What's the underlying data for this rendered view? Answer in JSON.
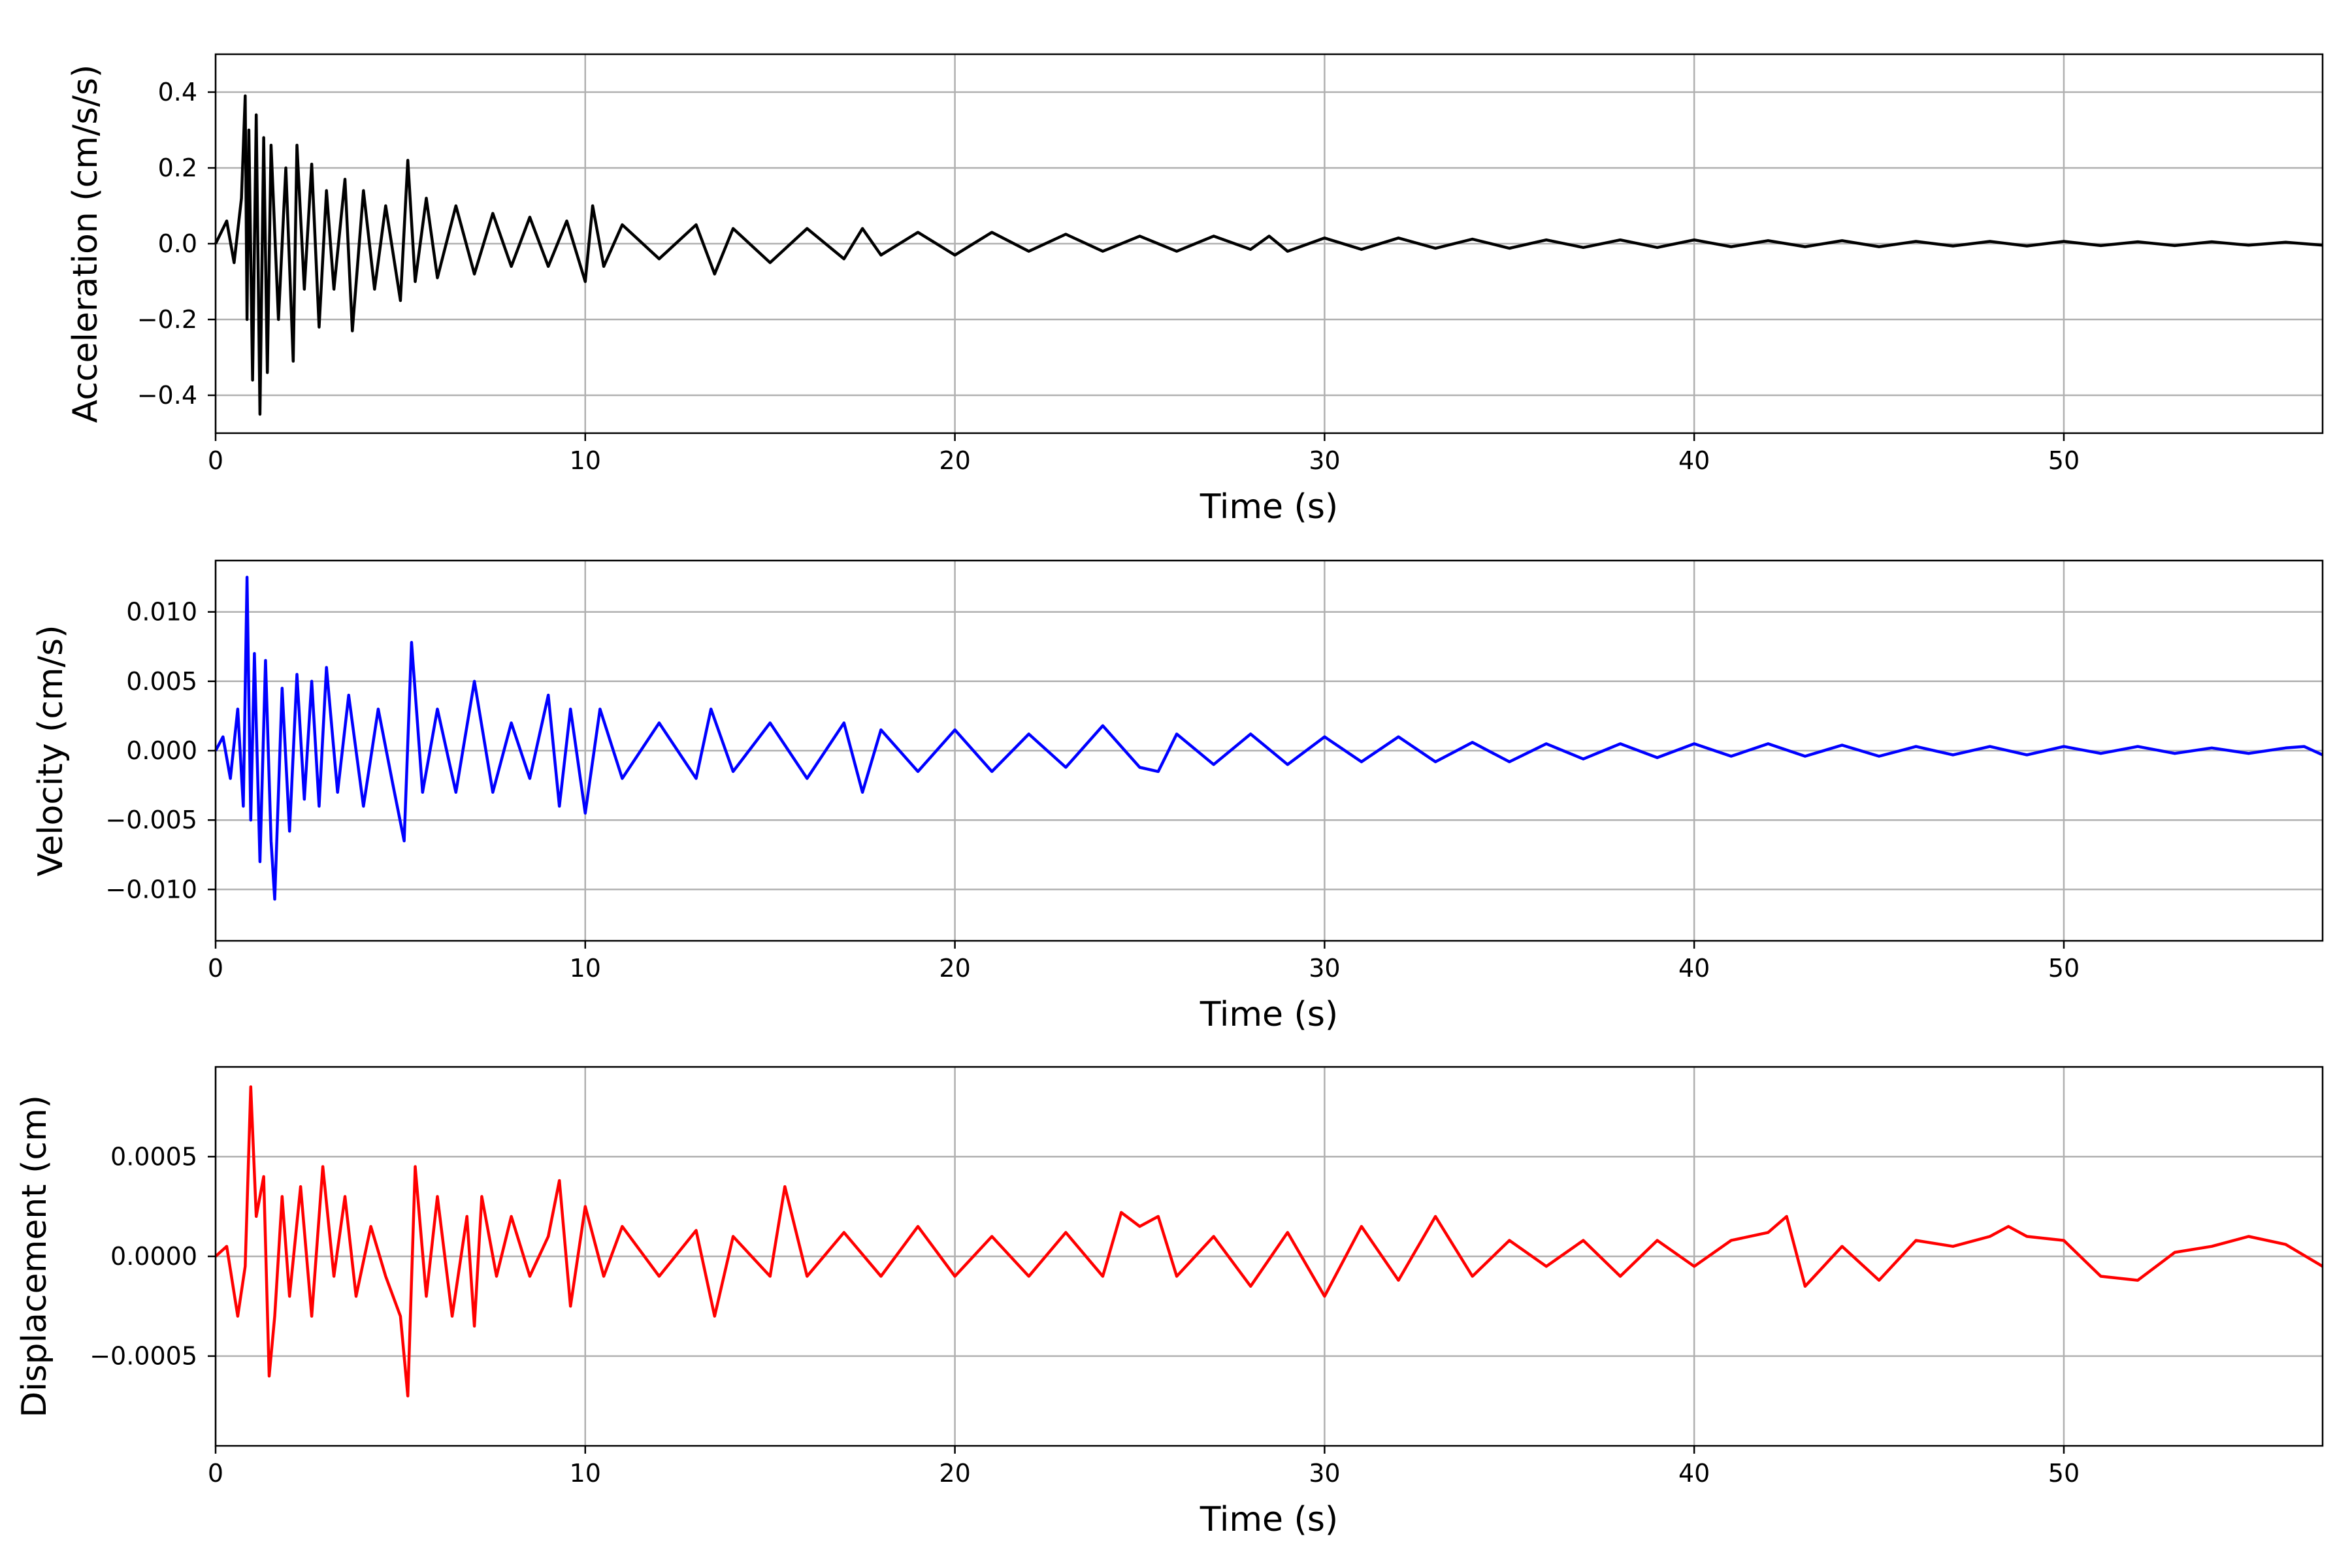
{
  "chart_data": [
    {
      "type": "line",
      "xlabel": "Time (s)",
      "ylabel": "Acceleration (cm/s/s)",
      "xlim": [
        0,
        57
      ],
      "ylim": [
        -0.5,
        0.5
      ],
      "xticks": [
        0,
        10,
        20,
        30,
        40,
        50
      ],
      "yticks": [
        -0.4,
        -0.2,
        0.0,
        0.2,
        0.4
      ],
      "ytick_labels": [
        "−0.4",
        "−0.2",
        "0.0",
        "0.2",
        "0.4"
      ],
      "grid": true,
      "series": [
        {
          "color": "#000000",
          "x": [
            0,
            0.3,
            0.5,
            0.7,
            0.8,
            0.85,
            0.9,
            1.0,
            1.1,
            1.2,
            1.3,
            1.4,
            1.5,
            1.7,
            1.9,
            2.1,
            2.2,
            2.4,
            2.6,
            2.8,
            3.0,
            3.2,
            3.5,
            3.7,
            4.0,
            4.3,
            4.6,
            5.0,
            5.2,
            5.4,
            5.7,
            6.0,
            6.5,
            7.0,
            7.5,
            8.0,
            8.5,
            9.0,
            9.5,
            10.0,
            10.2,
            10.5,
            11,
            12,
            13,
            13.5,
            14,
            15,
            16,
            17,
            17.5,
            18,
            19,
            20,
            21,
            22,
            23,
            24,
            25,
            26,
            27,
            28,
            28.5,
            29,
            30,
            31,
            32,
            33,
            34,
            35,
            36,
            37,
            38,
            39,
            40,
            41,
            42,
            43,
            44,
            45,
            46,
            47,
            48,
            49,
            50,
            51,
            52,
            53,
            54,
            55,
            56,
            57
          ],
          "y": [
            0.0,
            0.06,
            -0.05,
            0.12,
            0.39,
            -0.2,
            0.3,
            -0.36,
            0.34,
            -0.45,
            0.28,
            -0.34,
            0.26,
            -0.2,
            0.2,
            -0.31,
            0.26,
            -0.12,
            0.21,
            -0.22,
            0.14,
            -0.12,
            0.17,
            -0.23,
            0.14,
            -0.12,
            0.1,
            -0.15,
            0.22,
            -0.1,
            0.12,
            -0.09,
            0.1,
            -0.08,
            0.08,
            -0.06,
            0.07,
            -0.06,
            0.06,
            -0.1,
            0.1,
            -0.06,
            0.05,
            -0.04,
            0.05,
            -0.08,
            0.04,
            -0.05,
            0.04,
            -0.04,
            0.04,
            -0.03,
            0.03,
            -0.03,
            0.03,
            -0.02,
            0.025,
            -0.02,
            0.02,
            -0.02,
            0.02,
            -0.015,
            0.02,
            -0.02,
            0.015,
            -0.015,
            0.015,
            -0.012,
            0.012,
            -0.012,
            0.01,
            -0.01,
            0.01,
            -0.01,
            0.01,
            -0.008,
            0.008,
            -0.008,
            0.008,
            -0.008,
            0.006,
            -0.006,
            0.006,
            -0.006,
            0.006,
            -0.005,
            0.005,
            -0.005,
            0.005,
            -0.004,
            0.004,
            -0.004
          ]
        }
      ]
    },
    {
      "type": "line",
      "xlabel": "Time (s)",
      "ylabel": "Velocity (cm/s)",
      "xlim": [
        0,
        57
      ],
      "ylim": [
        -0.0137,
        0.0137
      ],
      "xticks": [
        0,
        10,
        20,
        30,
        40,
        50
      ],
      "yticks": [
        -0.01,
        -0.005,
        0.0,
        0.005,
        0.01
      ],
      "ytick_labels": [
        "−0.010",
        "−0.005",
        "0.000",
        "0.005",
        "0.010"
      ],
      "grid": true,
      "series": [
        {
          "color": "#0000ff",
          "x": [
            0,
            0.2,
            0.4,
            0.6,
            0.75,
            0.85,
            0.95,
            1.05,
            1.2,
            1.35,
            1.5,
            1.6,
            1.8,
            2.0,
            2.2,
            2.4,
            2.6,
            2.8,
            3.0,
            3.3,
            3.6,
            4.0,
            4.4,
            4.8,
            5.1,
            5.3,
            5.6,
            6.0,
            6.5,
            7.0,
            7.5,
            8.0,
            8.5,
            9.0,
            9.3,
            9.6,
            10.0,
            10.4,
            11,
            12,
            13,
            13.4,
            14,
            15,
            16,
            17,
            17.5,
            18,
            19,
            20,
            21,
            22,
            23,
            24,
            25,
            25.5,
            26,
            27,
            28,
            29,
            30,
            31,
            32,
            33,
            34,
            35,
            36,
            37,
            38,
            39,
            40,
            41,
            42,
            43,
            44,
            45,
            46,
            47,
            48,
            49,
            50,
            51,
            52,
            53,
            54,
            55,
            56,
            56.5,
            57
          ],
          "y": [
            0.0,
            0.001,
            -0.002,
            0.003,
            -0.004,
            0.0125,
            -0.005,
            0.007,
            -0.008,
            0.0065,
            -0.0065,
            -0.0107,
            0.0045,
            -0.0058,
            0.0055,
            -0.0035,
            0.005,
            -0.004,
            0.006,
            -0.003,
            0.004,
            -0.004,
            0.003,
            -0.0025,
            -0.0065,
            0.0078,
            -0.003,
            0.003,
            -0.003,
            0.005,
            -0.003,
            0.002,
            -0.002,
            0.004,
            -0.004,
            0.003,
            -0.0045,
            0.003,
            -0.002,
            0.002,
            -0.002,
            0.003,
            -0.0015,
            0.002,
            -0.002,
            0.002,
            -0.003,
            0.0015,
            -0.0015,
            0.0015,
            -0.0015,
            0.0012,
            -0.0012,
            0.0018,
            -0.0012,
            -0.0015,
            0.0012,
            -0.001,
            0.0012,
            -0.001,
            0.001,
            -0.0008,
            0.001,
            -0.0008,
            0.0006,
            -0.0008,
            0.0005,
            -0.0006,
            0.0005,
            -0.0005,
            0.0005,
            -0.0004,
            0.0005,
            -0.0004,
            0.0004,
            -0.0004,
            0.0003,
            -0.0003,
            0.0003,
            -0.0003,
            0.0003,
            -0.0002,
            0.0003,
            -0.0002,
            0.0002,
            -0.0002,
            0.0002,
            0.0003,
            -0.0003
          ]
        }
      ]
    },
    {
      "type": "line",
      "xlabel": "Time (s)",
      "ylabel": "Displacement (cm)",
      "xlim": [
        0,
        57
      ],
      "ylim": [
        -0.00095,
        0.00095
      ],
      "xticks": [
        0,
        10,
        20,
        30,
        40,
        50
      ],
      "yticks": [
        -0.0005,
        0.0,
        0.0005
      ],
      "ytick_labels": [
        "−0.0005",
        "0.0000",
        "0.0005"
      ],
      "grid": true,
      "series": [
        {
          "color": "#ff0000",
          "x": [
            0,
            0.3,
            0.6,
            0.8,
            0.95,
            1.1,
            1.3,
            1.45,
            1.6,
            1.8,
            2.0,
            2.3,
            2.6,
            2.9,
            3.2,
            3.5,
            3.8,
            4.2,
            4.6,
            5.0,
            5.2,
            5.4,
            5.7,
            6.0,
            6.4,
            6.8,
            7.0,
            7.2,
            7.6,
            8.0,
            8.5,
            9.0,
            9.3,
            9.6,
            10.0,
            10.5,
            11,
            12,
            13,
            13.5,
            14,
            15,
            15.4,
            16,
            17,
            18,
            19,
            20,
            21,
            22,
            23,
            24,
            24.5,
            25,
            25.5,
            26,
            27,
            28,
            29,
            30,
            31,
            32,
            33,
            34,
            35,
            36,
            37,
            38,
            39,
            40,
            41,
            42,
            42.5,
            43,
            44,
            45,
            46,
            47,
            48,
            48.5,
            49,
            50,
            51,
            52,
            53,
            54,
            55,
            56,
            57
          ],
          "y": [
            0.0,
            5e-05,
            -0.0003,
            -5e-05,
            0.00085,
            0.0002,
            0.0004,
            -0.0006,
            -0.0003,
            0.0003,
            -0.0002,
            0.00035,
            -0.0003,
            0.00045,
            -0.0001,
            0.0003,
            -0.0002,
            0.00015,
            -0.0001,
            -0.0003,
            -0.0007,
            0.00045,
            -0.0002,
            0.0003,
            -0.0003,
            0.0002,
            -0.00035,
            0.0003,
            -0.0001,
            0.0002,
            -0.0001,
            0.0001,
            0.00038,
            -0.00025,
            0.00025,
            -0.0001,
            0.00015,
            -0.0001,
            0.00013,
            -0.0003,
            0.0001,
            -0.0001,
            0.00035,
            -0.0001,
            0.00012,
            -0.0001,
            0.00015,
            -0.0001,
            0.0001,
            -0.0001,
            0.00012,
            -0.0001,
            0.00022,
            0.00015,
            0.0002,
            -0.0001,
            0.0001,
            -0.00015,
            0.00012,
            -0.0002,
            0.00015,
            -0.00012,
            0.0002,
            -0.0001,
            8e-05,
            -5e-05,
            8e-05,
            -0.0001,
            8e-05,
            -5e-05,
            8e-05,
            0.00012,
            0.0002,
            -0.00015,
            5e-05,
            -0.00012,
            8e-05,
            5e-05,
            0.0001,
            0.00015,
            0.0001,
            8e-05,
            -0.0001,
            -0.00012,
            2e-05,
            5e-05,
            0.0001,
            6e-05,
            -5e-05
          ]
        }
      ]
    }
  ]
}
